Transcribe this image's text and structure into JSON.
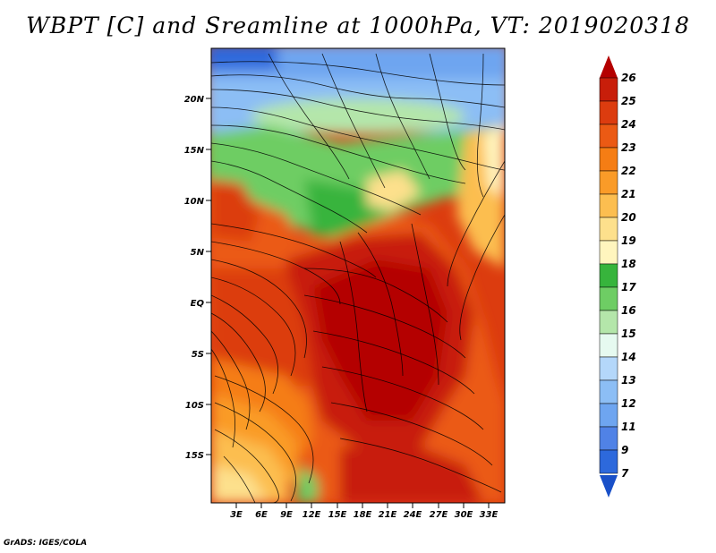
{
  "title": "WBPT [C] and Sreamline at 1000hPa, VT: 2019020318",
  "credit": "GrADS: IGES/COLA",
  "map": {
    "lat_labels": [
      "20N",
      "15N",
      "10N",
      "5N",
      "EQ",
      "5S",
      "10S",
      "15S"
    ],
    "lon_labels": [
      "3E",
      "6E",
      "9E",
      "12E",
      "15E",
      "18E",
      "21E",
      "24E",
      "27E",
      "30E",
      "33E"
    ]
  },
  "colorbar": {
    "labels": [
      "26",
      "25",
      "24",
      "23",
      "22",
      "21",
      "20",
      "19",
      "18",
      "17",
      "16",
      "15",
      "14",
      "13",
      "12",
      "11",
      "9",
      "7"
    ],
    "colors": [
      "#b40000",
      "#c81e0a",
      "#dc3c0f",
      "#eb5a14",
      "#f57d14",
      "#fa9b28",
      "#fcbe50",
      "#fde08c",
      "#fff5be",
      "#37b43c",
      "#6ecd64",
      "#b4e6aa",
      "#e6faf0",
      "#b4d7fa",
      "#8cbef5",
      "#6ea5f0",
      "#5082e6",
      "#2d69dc",
      "#1950c8"
    ]
  }
}
